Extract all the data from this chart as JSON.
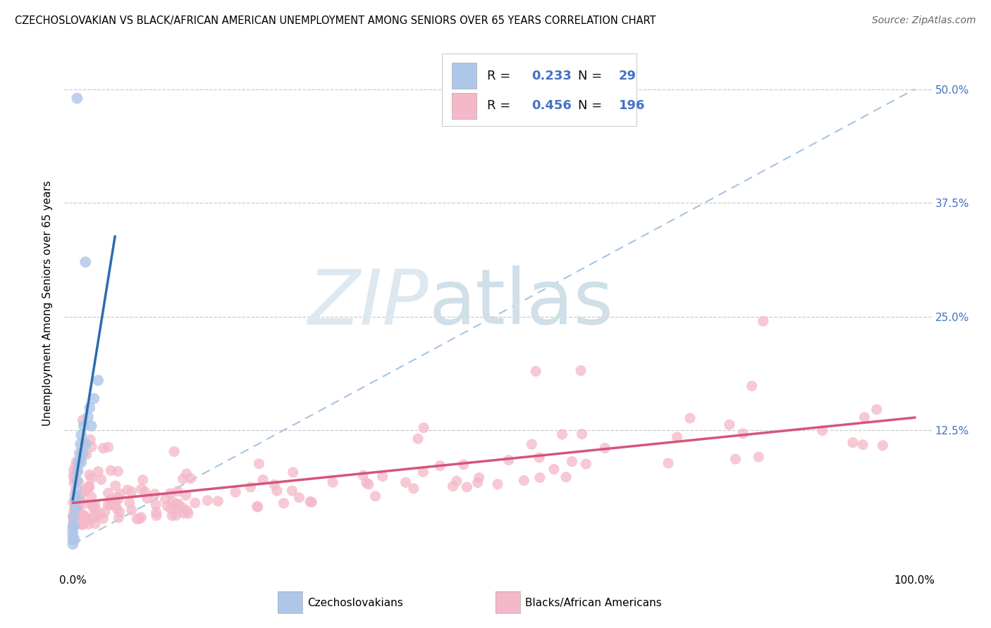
{
  "title": "CZECHOSLOVAKIAN VS BLACK/AFRICAN AMERICAN UNEMPLOYMENT AMONG SENIORS OVER 65 YEARS CORRELATION CHART",
  "source": "Source: ZipAtlas.com",
  "ylabel": "Unemployment Among Seniors over 65 years",
  "xlim": [
    -0.01,
    1.02
  ],
  "ylim": [
    -0.03,
    0.56
  ],
  "xtick_positions": [
    0.0,
    1.0
  ],
  "xtick_labels": [
    "0.0%",
    "100.0%"
  ],
  "ytick_values": [
    0.125,
    0.25,
    0.375,
    0.5
  ],
  "ytick_labels": [
    "12.5%",
    "25.0%",
    "37.5%",
    "50.0%"
  ],
  "legend_R_czech": "0.233",
  "legend_N_czech": "29",
  "legend_R_black": "0.456",
  "legend_N_black": "196",
  "czech_color": "#aec6e8",
  "black_color": "#f4b8c8",
  "czech_line_color": "#2b6cb0",
  "black_line_color": "#d6547a",
  "diag_line_color": "#a8c4e0",
  "background_color": "#ffffff",
  "grid_color": "#cccccc",
  "right_tick_color": "#4472c4",
  "title_fontsize": 10.5,
  "source_fontsize": 10,
  "axis_label_fontsize": 11,
  "tick_fontsize": 11,
  "legend_fontsize": 13
}
